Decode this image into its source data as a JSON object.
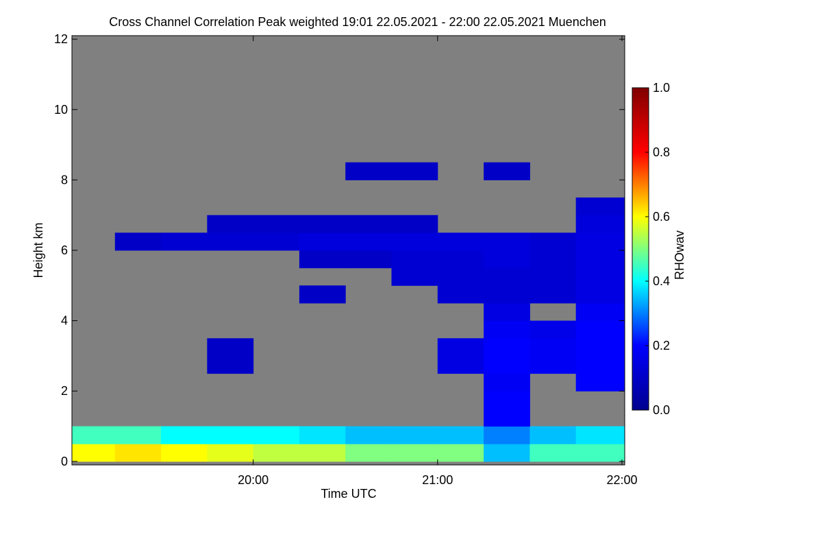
{
  "chart_data": {
    "type": "heatmap",
    "title": "Cross Channel Correlation Peak weighted   19:01 22.05.2021 - 22:00 22.05.2021 Muenchen",
    "x_label": "Time UTC",
    "y_label": "Height km",
    "colorbar_label": "RHOwav",
    "xlim": [
      19.0167,
      22.015
    ],
    "ylim": [
      -0.1,
      12.1
    ],
    "xticks": [
      {
        "value": 20,
        "label": "20:00"
      },
      {
        "value": 21,
        "label": "21:00"
      },
      {
        "value": 22,
        "label": "22:00"
      }
    ],
    "yticks": [
      0,
      2,
      4,
      6,
      8,
      10,
      12
    ],
    "clim": [
      0,
      1
    ],
    "cticks": [
      {
        "value": 0,
        "label": "0.0"
      },
      {
        "value": 0.2,
        "label": "0.2"
      },
      {
        "value": 0.4,
        "label": "0.4"
      },
      {
        "value": 0.6,
        "label": "0.6"
      },
      {
        "value": 0.8,
        "label": "0.8"
      },
      {
        "value": 1,
        "label": "1.0"
      }
    ],
    "colormap": [
      "#00008f",
      "#0000ff",
      "#00ffff",
      "#ffff00",
      "#ff0000",
      "#800000"
    ],
    "missing_color": "#808080",
    "xbins": [
      19.0167,
      19.25,
      19.5,
      19.75,
      20,
      20.25,
      20.5,
      20.75,
      21,
      21.25,
      21.5,
      21.75,
      22.015
    ],
    "ybins": [
      0,
      0.5,
      1,
      1.5,
      2,
      2.5,
      3,
      3.5,
      4,
      4.5,
      5,
      5.5,
      6,
      6.5,
      7,
      7.5,
      8,
      8.5
    ],
    "z": [
      [
        0.6,
        0.62,
        0.6,
        0.58,
        0.55,
        0.55,
        0.5,
        0.5,
        0.5,
        0.35,
        0.45,
        0.45
      ],
      [
        0.45,
        0.45,
        0.4,
        0.4,
        0.4,
        0.38,
        0.35,
        0.35,
        0.35,
        0.3,
        0.35,
        0.38
      ],
      [
        null,
        null,
        null,
        null,
        null,
        null,
        null,
        null,
        null,
        0.2,
        null,
        null
      ],
      [
        null,
        null,
        null,
        null,
        null,
        null,
        null,
        null,
        null,
        0.2,
        null,
        null
      ],
      [
        null,
        null,
        null,
        null,
        null,
        null,
        null,
        null,
        null,
        0.18,
        null,
        0.2
      ],
      [
        null,
        null,
        null,
        0.1,
        null,
        null,
        null,
        null,
        0.15,
        0.2,
        0.18,
        0.2
      ],
      [
        null,
        null,
        null,
        0.1,
        null,
        null,
        null,
        null,
        0.15,
        0.2,
        0.18,
        0.2
      ],
      [
        null,
        null,
        null,
        null,
        null,
        null,
        null,
        null,
        null,
        0.18,
        0.16,
        0.2
      ],
      [
        null,
        null,
        null,
        null,
        null,
        null,
        null,
        null,
        null,
        0.15,
        null,
        0.18
      ],
      [
        null,
        null,
        null,
        null,
        null,
        0.1,
        null,
        null,
        0.12,
        0.12,
        0.12,
        0.15
      ],
      [
        null,
        null,
        null,
        null,
        null,
        null,
        null,
        0.12,
        0.12,
        0.12,
        0.12,
        0.15
      ],
      [
        null,
        null,
        null,
        null,
        null,
        0.1,
        0.1,
        0.12,
        0.12,
        0.14,
        0.12,
        0.15
      ],
      [
        null,
        0.1,
        0.12,
        0.12,
        0.12,
        0.14,
        0.14,
        0.14,
        0.14,
        0.14,
        0.12,
        0.15
      ],
      [
        null,
        null,
        null,
        0.1,
        0.1,
        0.1,
        0.1,
        0.1,
        null,
        null,
        null,
        0.14
      ],
      [
        null,
        null,
        null,
        null,
        null,
        null,
        null,
        null,
        null,
        null,
        null,
        0.12
      ],
      [
        null,
        null,
        null,
        null,
        null,
        null,
        null,
        null,
        null,
        null,
        null,
        null
      ],
      [
        null,
        null,
        null,
        null,
        null,
        null,
        0.1,
        0.1,
        null,
        0.1,
        null,
        null
      ]
    ]
  }
}
